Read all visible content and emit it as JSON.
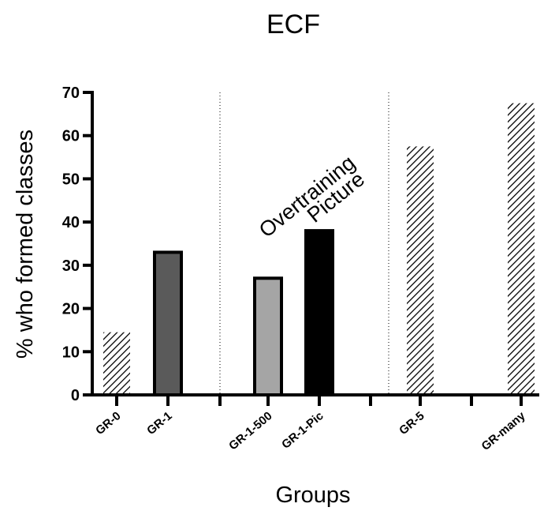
{
  "chart_data": {
    "type": "bar",
    "title": "ECF",
    "xlabel": "Groups",
    "ylabel": "% who formed classes",
    "ylim": [
      0,
      70
    ],
    "yticks": [
      0,
      10,
      20,
      30,
      40,
      50,
      60,
      70
    ],
    "categories": [
      "GR-0",
      "GR-1",
      "GR-1-500",
      "GR-1-Pic",
      "GR-5",
      "GR-many"
    ],
    "values": [
      14.5,
      33,
      27,
      38,
      57.5,
      67.5
    ],
    "bar_styles": [
      "hatched",
      "dark-gray",
      "light-gray",
      "black",
      "hatched",
      "hatched"
    ],
    "colors": {
      "dark-gray": "#5a5a5a",
      "light-gray": "#a5a5a5",
      "black": "#000000",
      "hatch": "#000000"
    },
    "annotations": [
      "Overtraining",
      "Picture"
    ],
    "grid": false
  }
}
